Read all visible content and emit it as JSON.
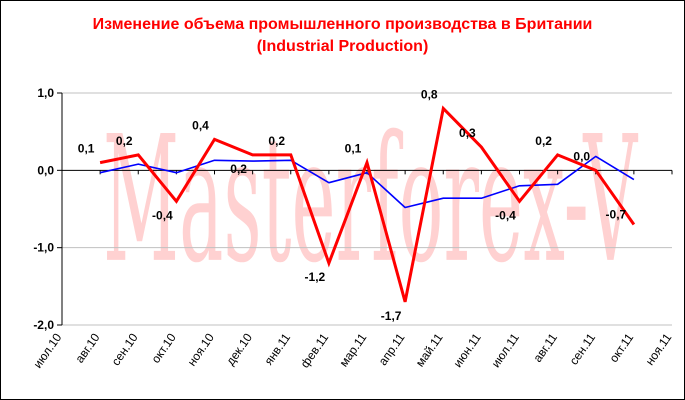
{
  "title": {
    "line1": "Изменение объема промышленного производства в Британии",
    "line2": "(Industrial Production)"
  },
  "watermark": "Masterforex-V",
  "colors": {
    "title": "#ff0000",
    "series_main": "#ff0000",
    "series_trend": "#0000ff",
    "watermark": "#ff9999",
    "axis": "#000000",
    "grid": "#c0c0c0"
  },
  "chart_data": {
    "type": "line",
    "categories": [
      "июл.10",
      "авг.10",
      "сен.10",
      "окт.10",
      "ноя.10",
      "дек.10",
      "янв.11",
      "фев.11",
      "мар.11",
      "апр.11",
      "май.11",
      "июн.11",
      "июл.11",
      "авг.11",
      "сен.11",
      "окт.11",
      "ноя.11"
    ],
    "ylim": [
      -2.0,
      1.0
    ],
    "yticks": [
      1.0,
      0.0,
      -1.0,
      -2.0
    ],
    "ytick_labels": [
      "1,0",
      "0,0",
      "-1,0",
      "-2,0"
    ],
    "grid": true,
    "series": [
      {
        "role": "main",
        "color": "#ff0000",
        "labels_shown": true,
        "points": [
          {
            "category": "авг.10",
            "value": 0.1,
            "label": "0,1"
          },
          {
            "category": "сен.10",
            "value": 0.2,
            "label": "0,2"
          },
          {
            "category": "окт.10",
            "value": -0.4,
            "label": "-0,4"
          },
          {
            "category": "ноя.10",
            "value": 0.4,
            "label": "0,4"
          },
          {
            "category": "дек.10",
            "value": 0.2,
            "label": "0,2"
          },
          {
            "category": "янв.11",
            "value": 0.2,
            "label": "0,2"
          },
          {
            "category": "фев.11",
            "value": -1.2,
            "label": "-1,2"
          },
          {
            "category": "мар.11",
            "value": 0.1,
            "label": "0,1"
          },
          {
            "category": "апр.11",
            "value": -1.7,
            "label": "-1,7"
          },
          {
            "category": "май.11",
            "value": 0.8,
            "label": "0,8"
          },
          {
            "category": "июн.11",
            "value": 0.3,
            "label": "0,3"
          },
          {
            "category": "июл.11",
            "value": -0.4,
            "label": "-0,4"
          },
          {
            "category": "авг.11",
            "value": 0.2,
            "label": "0,2"
          },
          {
            "category": "сен.11",
            "value": 0.0,
            "label": "0,0"
          },
          {
            "category": "окт.11",
            "value": -0.7,
            "label": "-0,7"
          }
        ]
      },
      {
        "role": "trend",
        "color": "#0000ff",
        "labels_shown": false,
        "points": [
          {
            "category": "авг.10",
            "value": -0.03
          },
          {
            "category": "сен.10",
            "value": 0.08
          },
          {
            "category": "окт.10",
            "value": -0.03
          },
          {
            "category": "ноя.10",
            "value": 0.13
          },
          {
            "category": "дек.10",
            "value": 0.12
          },
          {
            "category": "янв.11",
            "value": 0.13
          },
          {
            "category": "фев.11",
            "value": -0.16
          },
          {
            "category": "мар.11",
            "value": -0.03
          },
          {
            "category": "апр.11",
            "value": -0.48
          },
          {
            "category": "май.11",
            "value": -0.36
          },
          {
            "category": "июн.11",
            "value": -0.36
          },
          {
            "category": "июл.11",
            "value": -0.2
          },
          {
            "category": "авг.11",
            "value": -0.18
          },
          {
            "category": "сен.11",
            "value": 0.18
          },
          {
            "category": "окт.11",
            "value": -0.12
          }
        ]
      }
    ]
  }
}
